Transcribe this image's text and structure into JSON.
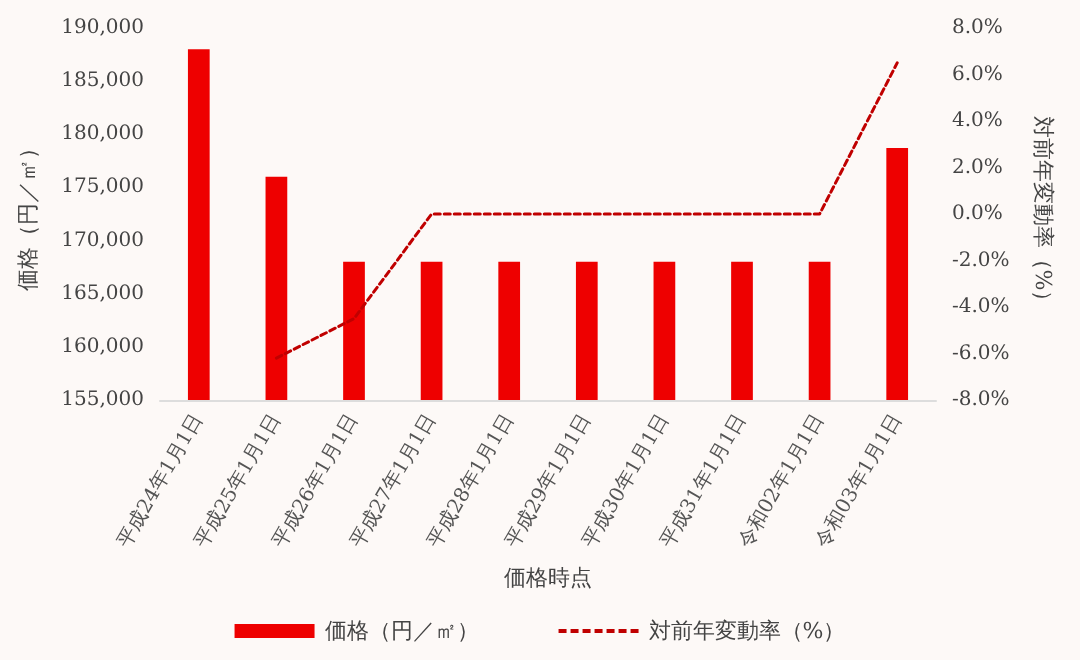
{
  "chart_data": {
    "type": "bar",
    "xlabel": "価格時点",
    "ylabel": "価格（円／㎡）",
    "y2label": "対前年変動率（%）",
    "categories": [
      "平成24年1月1日",
      "平成25年1月1日",
      "平成26年1月1日",
      "平成27年1月1日",
      "平成28年1月1日",
      "平成29年1月1日",
      "平成30年1月1日",
      "平成31年1月1日",
      "令和02年1月1日",
      "令和03年1月1日"
    ],
    "series": [
      {
        "name": "価格（円／㎡）",
        "color": "#ee0000",
        "values": [
          188000,
          176000,
          168000,
          168000,
          168000,
          168000,
          168000,
          168000,
          168000,
          178700
        ]
      },
      {
        "name": "対前年変動率（%）",
        "type": "line",
        "axis": "y2",
        "color": "#c00000",
        "line_style": "dashed",
        "marker": "none",
        "values": [
          null,
          -6.2,
          -4.5,
          0,
          0,
          0,
          0,
          0,
          0,
          6.5
        ]
      }
    ],
    "ylim": [
      155000,
      190000
    ],
    "yticks": [
      {
        "value": 155000,
        "label": "155,000"
      },
      {
        "value": 160000,
        "label": "160,000"
      },
      {
        "value": 165000,
        "label": "165,000"
      },
      {
        "value": 170000,
        "label": "170,000"
      },
      {
        "value": 175000,
        "label": "175,000"
      },
      {
        "value": 180000,
        "label": "180,000"
      },
      {
        "value": 185000,
        "label": "185,000"
      },
      {
        "value": 190000,
        "label": "190,000"
      }
    ],
    "y2lim": [
      -8,
      8
    ],
    "y2ticks": [
      {
        "value": -8,
        "label": "-8.0%"
      },
      {
        "value": -6,
        "label": "-6.0%"
      },
      {
        "value": -4,
        "label": "-4.0%"
      },
      {
        "value": -2,
        "label": "-2.0%"
      },
      {
        "value": 0,
        "label": "0.0%"
      },
      {
        "value": 2,
        "label": "2.0%"
      },
      {
        "value": 4,
        "label": "4.0%"
      },
      {
        "value": 6,
        "label": "6.0%"
      },
      {
        "value": 8,
        "label": "8.0%"
      }
    ],
    "grid": false,
    "legend": "bottom"
  }
}
